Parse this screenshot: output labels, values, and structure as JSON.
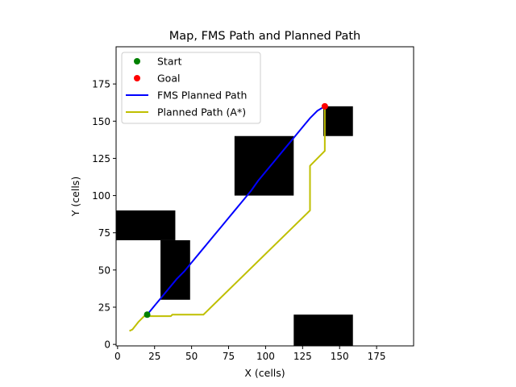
{
  "chart_data": {
    "type": "line",
    "title": "Map, FMS Path and Planned Path",
    "xlabel": "X (cells)",
    "ylabel": "Y (cells)",
    "xlim": [
      -1,
      200
    ],
    "ylim": [
      -1,
      200
    ],
    "xticks": [
      0,
      25,
      50,
      75,
      100,
      125,
      150,
      175
    ],
    "yticks": [
      0,
      25,
      50,
      75,
      100,
      125,
      150,
      175
    ],
    "grid": false,
    "legend_position": "top-left",
    "obstacles": [
      {
        "x0": -1,
        "x1": 39,
        "y0": 70,
        "y1": 90
      },
      {
        "x0": 29,
        "x1": 49,
        "y0": 30,
        "y1": 70
      },
      {
        "x0": 79,
        "x1": 119,
        "y0": 100,
        "y1": 140
      },
      {
        "x0": 139,
        "x1": 159,
        "y0": 140,
        "y1": 160
      },
      {
        "x0": 119,
        "x1": 159,
        "y0": -1,
        "y1": 20
      }
    ],
    "series": [
      {
        "name": "Start",
        "kind": "marker",
        "color": "#008000",
        "x": [
          20
        ],
        "y": [
          20
        ]
      },
      {
        "name": "Goal",
        "kind": "marker",
        "color": "#ff0000",
        "x": [
          140
        ],
        "y": [
          160
        ]
      },
      {
        "name": "FMS Planned Path",
        "kind": "line",
        "color": "#0000ff",
        "x": [
          20,
          25,
          30,
          35,
          40,
          45,
          50,
          55,
          60,
          65,
          70,
          75,
          80,
          85,
          90,
          95,
          100,
          105,
          110,
          115,
          120,
          125,
          130,
          135,
          140
        ],
        "y": [
          20,
          26,
          32,
          38,
          44,
          49,
          55,
          61,
          67,
          73,
          79,
          85,
          91,
          97,
          103,
          110,
          116,
          122,
          128,
          134,
          140,
          146,
          152,
          157,
          160
        ]
      },
      {
        "name": "Planned Path (A*)",
        "kind": "line",
        "color": "#bfbf00",
        "x": [
          8,
          10,
          14,
          18,
          22,
          24,
          36,
          37,
          58,
          130,
          130,
          140,
          140
        ],
        "y": [
          9,
          10,
          15,
          19,
          19,
          19,
          19,
          20,
          20,
          90,
          120,
          130,
          160
        ]
      }
    ]
  }
}
